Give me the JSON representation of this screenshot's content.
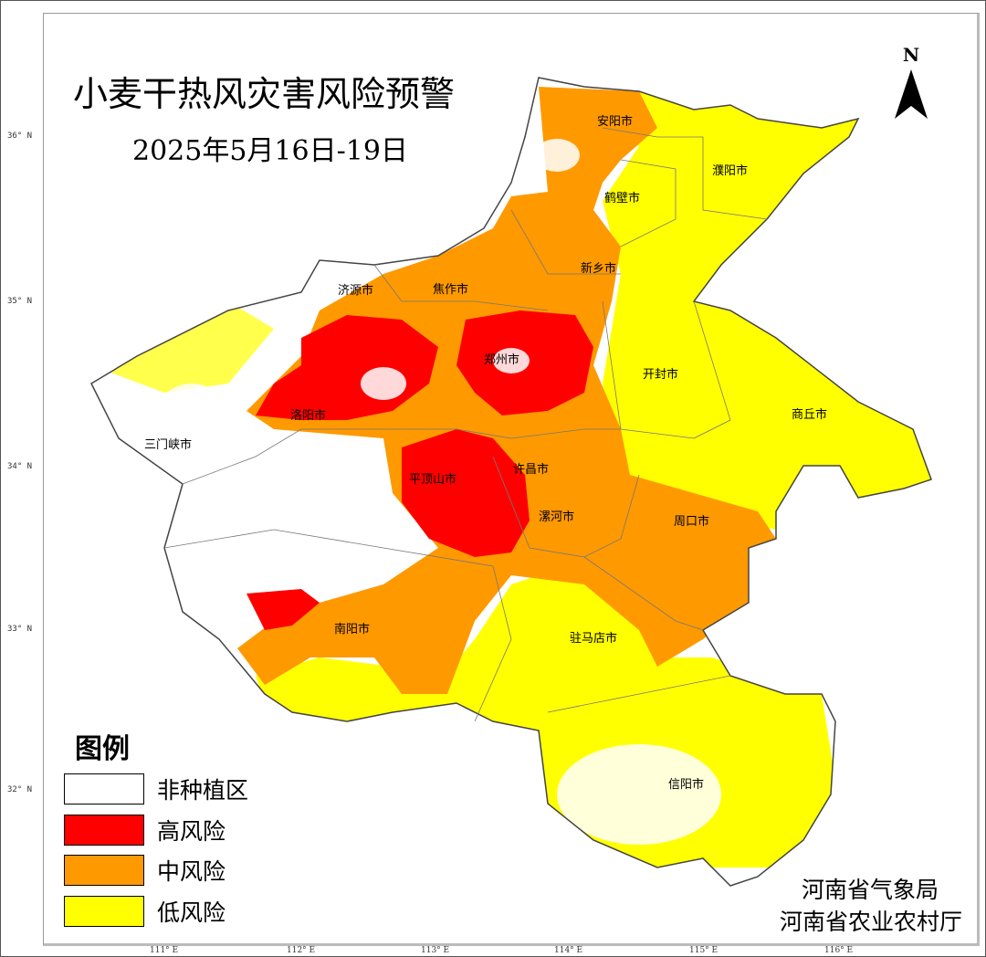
{
  "title": "小麦干热风灾害风险预警",
  "subtitle": "2025年5月16日-19日",
  "north_label": "N",
  "lat_labels": [
    "36° N",
    "35° N",
    "34° N",
    "33° N",
    "32° N"
  ],
  "lon_labels": [
    "111° E",
    "112° E",
    "113° E",
    "114° E",
    "115° E",
    "116° E"
  ],
  "cities": [
    "安阳市",
    "濮阳市",
    "鹤壁市",
    "新乡市",
    "焦作市",
    "济源市",
    "郑州市",
    "开封市",
    "商丘市",
    "洛阳市",
    "三门峡市",
    "平顶山市",
    "许昌市",
    "漯河市",
    "周口市",
    "南阳市",
    "驻马店市",
    "信阳市"
  ],
  "legend": {
    "title": "图例",
    "items": [
      {
        "label": "非种植区",
        "color": "#FFFFFF"
      },
      {
        "label": "高风险",
        "color": "#FF0000"
      },
      {
        "label": "中风险",
        "color": "#FF9900"
      },
      {
        "label": "低风险",
        "color": "#FFFF00"
      }
    ]
  },
  "credits": [
    "河南省气象局",
    "河南省农业农村厅"
  ]
}
